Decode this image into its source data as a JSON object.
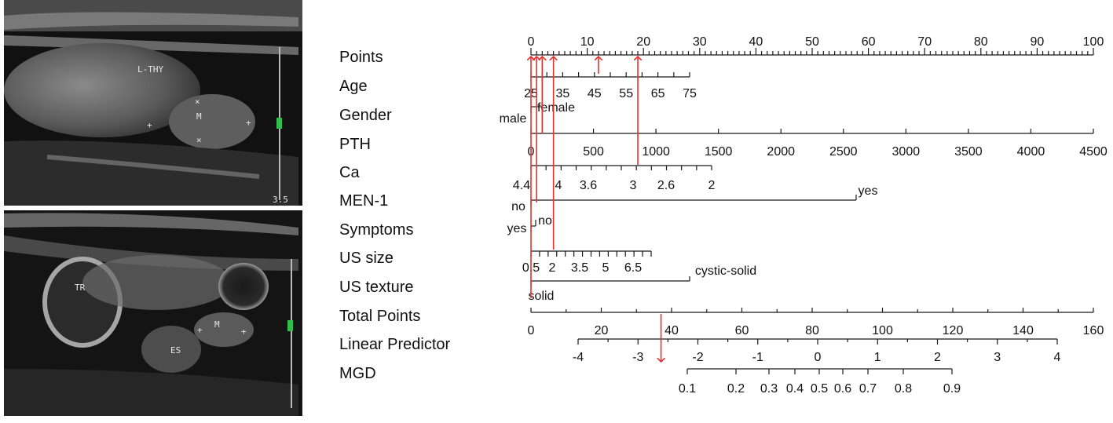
{
  "colors": {
    "axis": "#1a1a1a",
    "arrow": "#e8302c",
    "ultrasound_bg": "#0d0d0d",
    "tissue": "#6f6f6f",
    "marker": "#2fbf4a"
  },
  "ultrasound": {
    "top_labels": {
      "thyroid": "L-THY",
      "mass": "M",
      "scale": "3.5"
    },
    "bottom_labels": {
      "trachea": "TR",
      "esophagus": "ES",
      "mass": "M"
    }
  },
  "chart_data": {
    "type": "nomogram",
    "variables": [
      {
        "label": "Points",
        "ticks": [
          "0",
          "10",
          "20",
          "30",
          "40",
          "50",
          "60",
          "70",
          "80",
          "90",
          "100"
        ]
      },
      {
        "label": "Age",
        "ticks": [
          "25",
          "35",
          "45",
          "55",
          "65",
          "75"
        ]
      },
      {
        "label": "Gender",
        "levels": [
          "male",
          "female"
        ]
      },
      {
        "label": "PTH",
        "ticks": [
          "0",
          "500",
          "1000",
          "1500",
          "2000",
          "2500",
          "3000",
          "3500",
          "4000",
          "4500"
        ]
      },
      {
        "label": "Ca",
        "ticks": [
          "4.4",
          "4",
          "3.6",
          "3",
          "2.6",
          "2"
        ]
      },
      {
        "label": "MEN-1",
        "levels": [
          "no",
          "yes"
        ]
      },
      {
        "label": "Symptoms",
        "levels": [
          "yes",
          "no"
        ]
      },
      {
        "label": "US size",
        "ticks": [
          "0.5",
          "2",
          "3.5",
          "5",
          "6.5"
        ]
      },
      {
        "label": "US texture",
        "levels": [
          "solid",
          "cystic-solid"
        ]
      },
      {
        "label": "Total Points",
        "ticks": [
          "0",
          "20",
          "40",
          "60",
          "80",
          "100",
          "120",
          "140",
          "160"
        ]
      },
      {
        "label": "Linear Predictor",
        "ticks": [
          "-4",
          "-3",
          "-2",
          "-1",
          "0",
          "1",
          "2",
          "3",
          "4"
        ]
      },
      {
        "label": "MGD",
        "ticks": [
          "0.1",
          "0.2",
          "0.3",
          "0.4",
          "0.5",
          "0.6",
          "0.7",
          "0.8",
          "0.9"
        ]
      }
    ],
    "example_arrows": {
      "points_read": [
        0,
        1,
        2,
        4,
        12,
        19
      ],
      "total_points_read": 37
    }
  }
}
